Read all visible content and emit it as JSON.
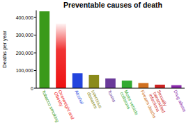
{
  "chart_data": {
    "type": "bar",
    "title": "Preventable causes of death",
    "y_label": "Deaths per year",
    "categories": [
      "Tobacco smoking",
      "Overweight and Obesity",
      "Alcohol",
      "Infectious diseases",
      "Toxins",
      "Motor vehicle collisions",
      "Firearm deaths",
      "Sexually transmitted infections",
      "Drug abuse"
    ],
    "values": [
      435000,
      365000,
      85000,
      75000,
      55000,
      43000,
      29000,
      20000,
      17000
    ],
    "colors": [
      "#3a9a1a",
      "#ee1111",
      "#2244dd",
      "#8a8a1a",
      "#6a3a9a",
      "#33aa33",
      "#d07020",
      "#cc2222",
      "#8a2aaa"
    ],
    "ylim": [
      0,
      440000
    ],
    "yticks": [
      {
        "value": 0,
        "label": "0"
      },
      {
        "value": 100000,
        "label": "100,000"
      },
      {
        "value": 200000,
        "label": "200,000"
      },
      {
        "value": 300000,
        "label": "300,000"
      },
      {
        "value": 400000,
        "label": "400,000"
      }
    ],
    "grid": false
  }
}
